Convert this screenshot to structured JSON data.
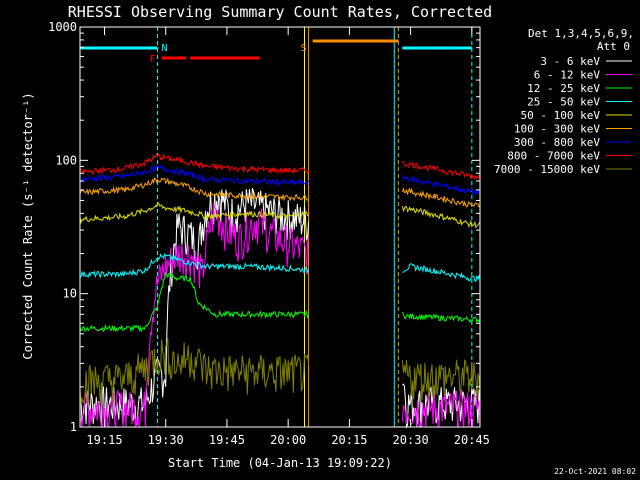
{
  "chart_data": {
    "type": "line",
    "title": "RHESSI Observing Summary Count Rates, Corrected",
    "xlabel": "Start Time (04-Jan-13 19:09:22)",
    "ylabel": "Corrected Count Rate (s⁻¹ detector⁻¹)",
    "y_scale": "log",
    "ylim": [
      1,
      1000
    ],
    "xlim": [
      "19:09",
      "20:47"
    ],
    "x_ticks": [
      "19:15",
      "19:30",
      "19:45",
      "20:00",
      "20:15",
      "20:30",
      "20:45"
    ],
    "y_ticks": [
      "1",
      "10",
      "100",
      "1000"
    ],
    "legend_title": "Det 1,3,4,5,6,9,",
    "legend_subtitle": "Att 0",
    "legend_position": "top-right",
    "timestamp": "22-Oct-2021 08:02",
    "data_gap": [
      "20:05",
      "20:28"
    ],
    "series": [
      {
        "name": "3 - 6 keV",
        "color": "#ffffff",
        "x": [
          "19:09",
          "19:15",
          "19:20",
          "19:25",
          "19:26",
          "19:28",
          "19:30",
          "19:33",
          "19:36",
          "19:38",
          "19:40",
          "19:43",
          "19:46",
          "19:50",
          "19:55",
          "20:00",
          "20:05",
          "20:28",
          "20:29",
          "20:45"
        ],
        "values": [
          1.5,
          1.5,
          1.5,
          1.5,
          1.8,
          2.5,
          2.5,
          32,
          28,
          22,
          45,
          55,
          40,
          48,
          42,
          38,
          35,
          2.5,
          1.5,
          1.5
        ]
      },
      {
        "name": "6 - 12 keV",
        "color": "#ff00ff",
        "x": [
          "19:09",
          "19:20",
          "19:25",
          "19:28",
          "19:30",
          "19:33",
          "19:36",
          "19:39",
          "19:42",
          "19:45",
          "19:48",
          "19:52",
          "19:56",
          "20:00",
          "20:05",
          "20:28",
          "20:29",
          "20:45"
        ],
        "values": [
          1.4,
          1.4,
          1.4,
          12,
          16,
          20,
          20,
          14,
          42,
          30,
          26,
          36,
          28,
          24,
          20,
          1.5,
          1.4,
          1.4
        ]
      },
      {
        "name": "12 - 25 keV",
        "color": "#00ff00",
        "x": [
          "19:09",
          "19:20",
          "19:25",
          "19:28",
          "19:30",
          "19:33",
          "19:36",
          "19:38",
          "19:42",
          "19:50",
          "20:00",
          "20:05",
          "20:28",
          "20:29",
          "20:45"
        ],
        "values": [
          5.5,
          5.5,
          5.5,
          8,
          14,
          13,
          13,
          8.5,
          7,
          7,
          7,
          7,
          7,
          6.8,
          6.4
        ]
      },
      {
        "name": "25 - 50 keV",
        "color": "#00ffff",
        "x": [
          "19:09",
          "19:20",
          "19:25",
          "19:28",
          "19:30",
          "19:33",
          "19:36",
          "19:40",
          "19:50",
          "20:00",
          "20:05",
          "20:28",
          "20:30",
          "20:45"
        ],
        "values": [
          14,
          14,
          15,
          19,
          19,
          18,
          17,
          16,
          16,
          15.5,
          15,
          15,
          16,
          13
        ]
      },
      {
        "name": "50 - 100 keV",
        "color": "#dddd00",
        "x": [
          "19:09",
          "19:15",
          "19:20",
          "19:25",
          "19:28",
          "19:30",
          "19:35",
          "19:40",
          "19:45",
          "19:50",
          "20:00",
          "20:05",
          "20:28",
          "20:30",
          "20:45"
        ],
        "values": [
          36,
          37,
          38,
          42,
          46,
          44,
          42,
          38,
          39,
          40,
          38,
          40,
          44,
          43,
          33
        ]
      },
      {
        "name": "100 - 300 keV",
        "color": "#ffa500",
        "x": [
          "19:09",
          "19:15",
          "19:20",
          "19:25",
          "19:28",
          "19:30",
          "19:35",
          "19:40",
          "19:50",
          "20:00",
          "20:05",
          "20:28",
          "20:30",
          "20:45"
        ],
        "values": [
          57,
          59,
          60,
          66,
          72,
          70,
          64,
          56,
          54,
          53,
          53,
          60,
          58,
          46
        ]
      },
      {
        "name": "300 - 800 keV",
        "color": "#0000ff",
        "x": [
          "19:09",
          "19:15",
          "19:20",
          "19:25",
          "19:28",
          "19:30",
          "19:35",
          "19:40",
          "19:50",
          "20:00",
          "20:05",
          "20:28",
          "20:30",
          "20:45"
        ],
        "values": [
          72,
          74,
          76,
          82,
          88,
          86,
          80,
          72,
          70,
          68,
          68,
          75,
          72,
          58
        ]
      },
      {
        "name": "800 - 7000 keV",
        "color": "#ff0000",
        "x": [
          "19:09",
          "19:15",
          "19:20",
          "19:25",
          "19:28",
          "19:30",
          "19:35",
          "19:40",
          "19:50",
          "20:00",
          "20:05",
          "20:28",
          "20:30",
          "20:45"
        ],
        "values": [
          82,
          84,
          87,
          96,
          108,
          104,
          98,
          90,
          86,
          84,
          84,
          95,
          93,
          76
        ]
      },
      {
        "name": "7000 - 15000 keV",
        "color": "#808000",
        "x": [
          "19:09",
          "19:20",
          "19:25",
          "19:28",
          "19:30",
          "19:33",
          "19:36",
          "19:40",
          "19:50",
          "20:00",
          "20:05",
          "20:28",
          "20:29",
          "20:45"
        ],
        "values": [
          2.2,
          2.3,
          2.8,
          3.5,
          3.6,
          3.0,
          3.5,
          2.7,
          2.6,
          2.6,
          2.6,
          2.6,
          2.4,
          2.4
        ]
      }
    ],
    "flags": [
      {
        "label": "N",
        "color": "#00ffff",
        "segments": [
          [
            "19:09",
            "19:28"
          ],
          [
            "20:28",
            "20:45"
          ]
        ]
      },
      {
        "label": "F",
        "color": "#ff0000",
        "segments": [
          [
            "19:29",
            "19:35"
          ],
          [
            "19:36",
            "19:53"
          ]
        ]
      },
      {
        "label": "S",
        "color": "#ff8c00",
        "segments": [
          [
            "20:06",
            "20:27"
          ]
        ]
      }
    ],
    "markers": [
      {
        "time": "19:09",
        "color": "#00ffff",
        "style": "solid"
      },
      {
        "time": "19:28",
        "color": "#00ffff",
        "style": "dashed"
      },
      {
        "time": "20:04",
        "color": "#ffff00",
        "style": "solid"
      },
      {
        "time": "20:05",
        "color": "#ff8c00",
        "style": "solid"
      },
      {
        "time": "20:26",
        "color": "#00ffff",
        "style": "solid"
      },
      {
        "time": "20:27",
        "color": "#ff8c00",
        "style": "dashed"
      },
      {
        "time": "20:45",
        "color": "#00ffff",
        "style": "dashed"
      }
    ]
  }
}
